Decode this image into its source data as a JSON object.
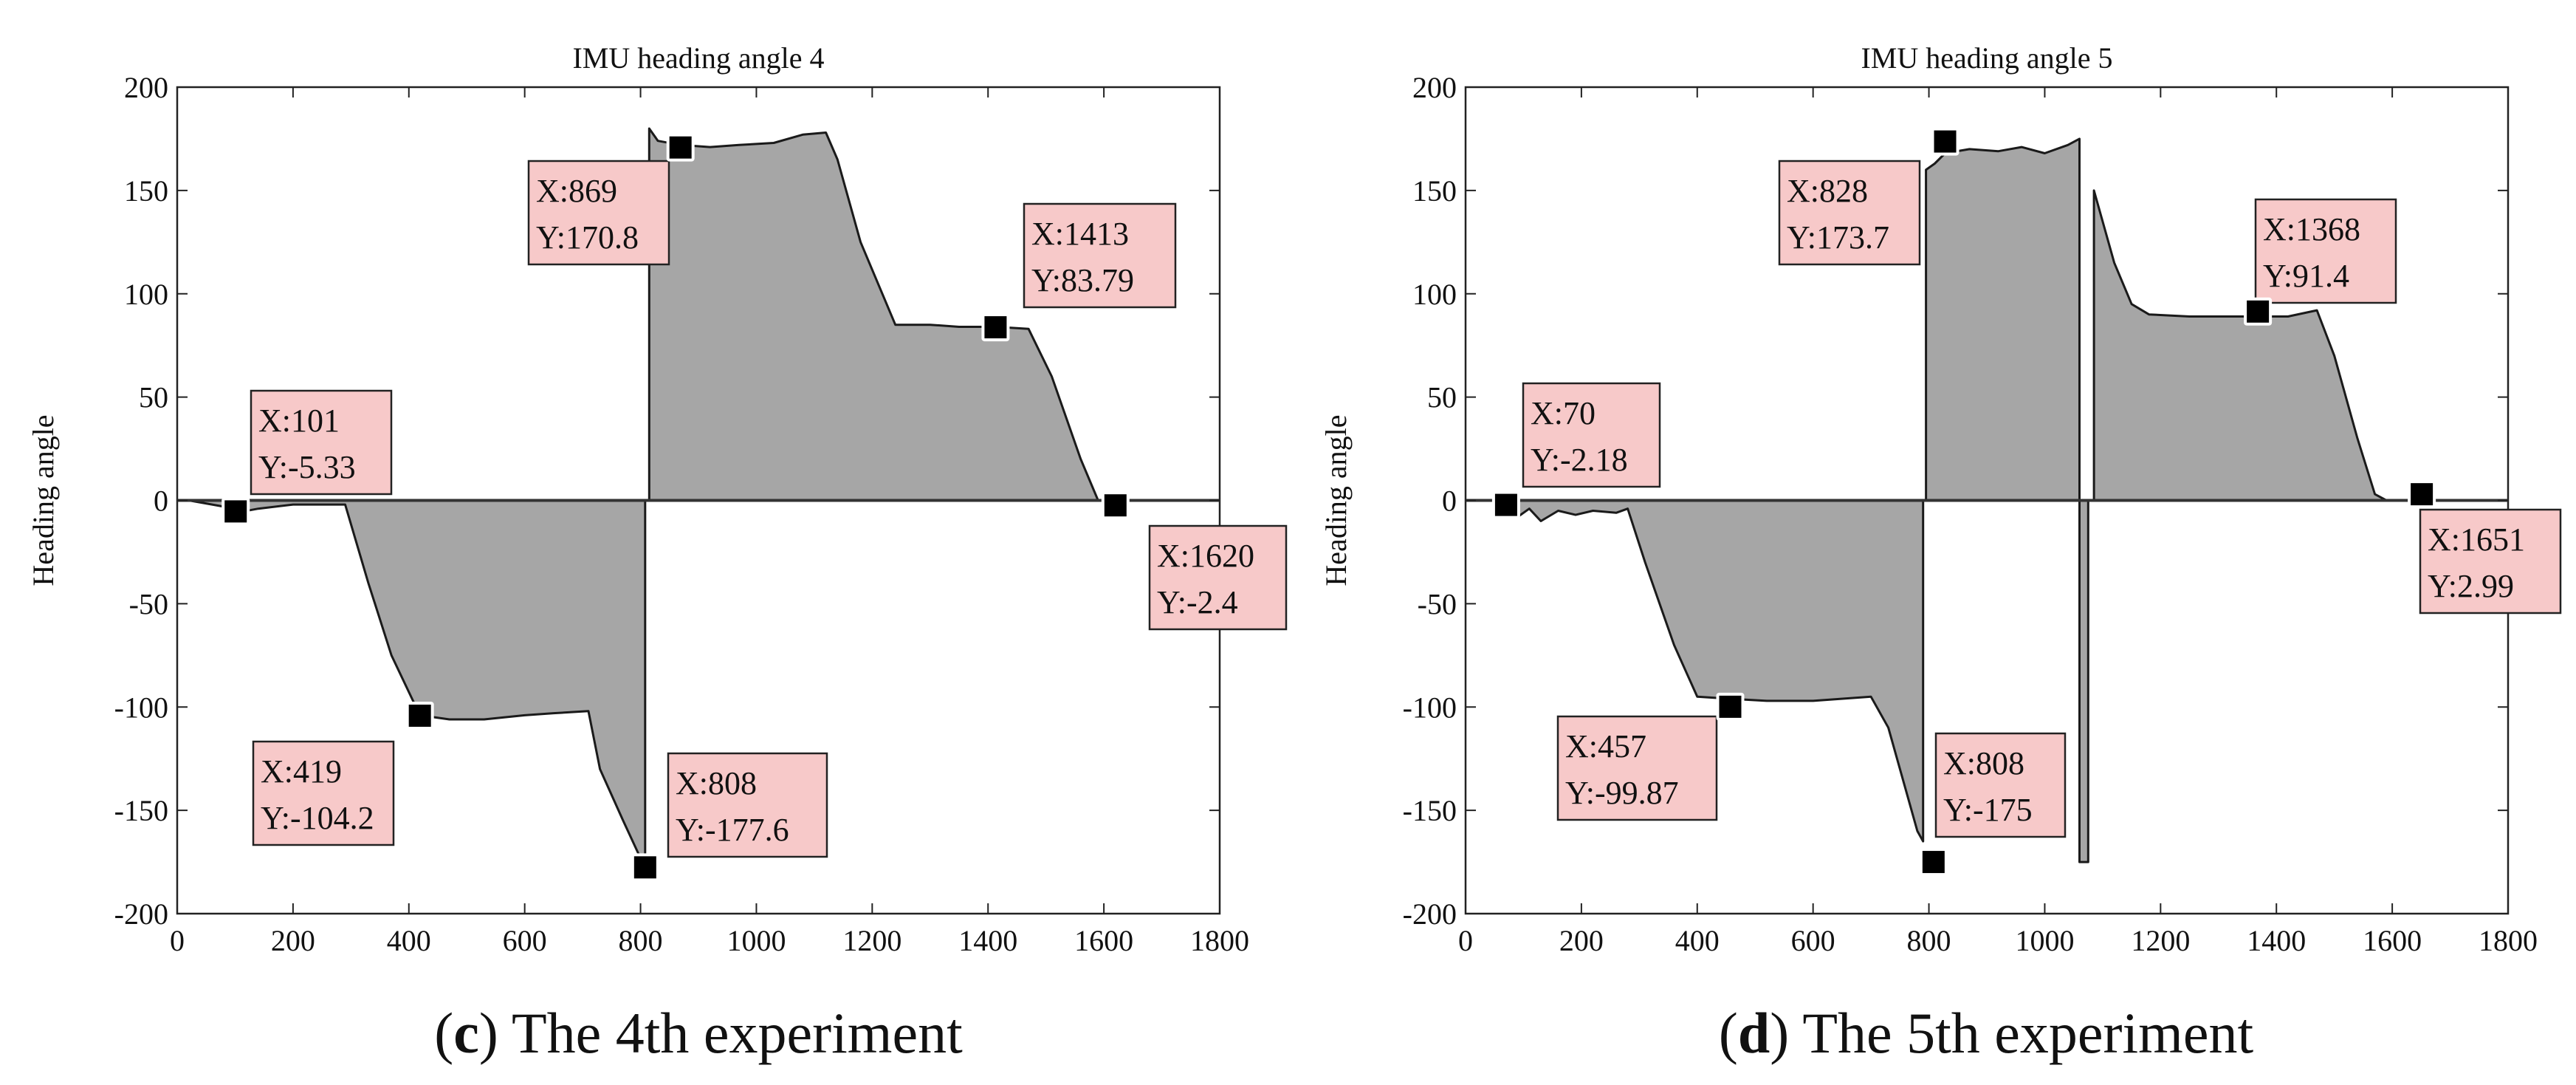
{
  "chart_data": [
    {
      "type": "area",
      "title": "IMU heading angle 4",
      "xlabel": "",
      "ylabel": "Heading angle",
      "xlim": [
        0,
        1800
      ],
      "ylim": [
        -200,
        200
      ],
      "xticks": [
        0,
        200,
        400,
        600,
        800,
        1000,
        1200,
        1400,
        1600,
        1800
      ],
      "yticks": [
        200,
        150,
        100,
        50,
        0,
        -50,
        -100,
        -150,
        -200
      ],
      "caption": {
        "letter": "c",
        "text": " The 4th experiment",
        "open": "(",
        "close": ")"
      },
      "series": [
        {
          "name": "heading",
          "segments": [
            [
              [
                20,
                0
              ],
              [
                80,
                -3
              ],
              [
                101,
                -6
              ],
              [
                140,
                -4
              ],
              [
                200,
                -2
              ],
              [
                290,
                -2
              ],
              [
                330,
                -40
              ],
              [
                370,
                -75
              ],
              [
                419,
                -104
              ],
              [
                470,
                -106
              ],
              [
                530,
                -106
              ],
              [
                600,
                -104
              ],
              [
                650,
                -103
              ],
              [
                710,
                -102
              ],
              [
                730,
                -130
              ],
              [
                770,
                -155
              ],
              [
                808,
                -178
              ],
              [
                808,
                0
              ]
            ],
            [
              [
                815,
                180
              ],
              [
                830,
                174
              ],
              [
                869,
                172
              ],
              [
                920,
                171
              ],
              [
                970,
                172
              ],
              [
                1030,
                173
              ],
              [
                1080,
                177
              ],
              [
                1120,
                178
              ],
              [
                1140,
                165
              ],
              [
                1180,
                125
              ],
              [
                1240,
                85
              ],
              [
                1300,
                85
              ],
              [
                1350,
                84
              ],
              [
                1413,
                84
              ],
              [
                1470,
                83
              ],
              [
                1510,
                60
              ],
              [
                1560,
                20
              ],
              [
                1590,
                0
              ]
            ]
          ]
        }
      ],
      "markers": [
        {
          "x": 101,
          "y": -5.33
        },
        {
          "x": 419,
          "y": -104.2
        },
        {
          "x": 808,
          "y": -177.6
        },
        {
          "x": 869,
          "y": 170.8
        },
        {
          "x": 1413,
          "y": 83.79
        },
        {
          "x": 1620,
          "y": -2.4
        }
      ],
      "annotations": [
        {
          "line1": "X:101",
          "line2": "Y:-5.33"
        },
        {
          "line1": "X:419",
          "line2": "Y:-104.2"
        },
        {
          "line1": "X:808",
          "line2": "Y:-177.6"
        },
        {
          "line1": "X:869",
          "line2": "Y:170.8"
        },
        {
          "line1": "X:1413",
          "line2": "Y:83.79"
        },
        {
          "line1": "X:1620",
          "line2": "Y:-2.4"
        }
      ]
    },
    {
      "type": "area",
      "title": "IMU heading angle 5",
      "xlabel": "",
      "ylabel": "Heading angle",
      "xlim": [
        0,
        1800
      ],
      "ylim": [
        -200,
        200
      ],
      "xticks": [
        0,
        200,
        400,
        600,
        800,
        1000,
        1200,
        1400,
        1600,
        1800
      ],
      "yticks": [
        200,
        150,
        100,
        50,
        0,
        -50,
        -100,
        -150,
        -200
      ],
      "caption": {
        "letter": "d",
        "text": " The 5th experiment",
        "open": "(",
        "close": ")"
      },
      "series": [
        {
          "name": "heading",
          "segments": [
            [
              [
                70,
                -2
              ],
              [
                90,
                -8
              ],
              [
                110,
                -4
              ],
              [
                130,
                -10
              ],
              [
                160,
                -5
              ],
              [
                190,
                -7
              ],
              [
                220,
                -5
              ],
              [
                260,
                -6
              ],
              [
                280,
                -4
              ],
              [
                310,
                -30
              ],
              [
                360,
                -70
              ],
              [
                400,
                -95
              ],
              [
                457,
                -96
              ],
              [
                520,
                -97
              ],
              [
                600,
                -97
              ],
              [
                700,
                -95
              ],
              [
                730,
                -110
              ],
              [
                760,
                -140
              ],
              [
                780,
                -160
              ],
              [
                790,
                -165
              ],
              [
                790,
                0
              ]
            ],
            [
              [
                795,
                160
              ],
              [
                810,
                163
              ],
              [
                828,
                168
              ],
              [
                870,
                170
              ],
              [
                920,
                169
              ],
              [
                960,
                171
              ],
              [
                1000,
                168
              ],
              [
                1040,
                172
              ],
              [
                1060,
                175
              ],
              [
                1060,
                -175
              ],
              [
                1075,
                -175
              ],
              [
                1075,
                0
              ]
            ],
            [
              [
                1085,
                150
              ],
              [
                1120,
                115
              ],
              [
                1150,
                95
              ],
              [
                1180,
                90
              ],
              [
                1250,
                89
              ],
              [
                1300,
                89
              ],
              [
                1368,
                89
              ],
              [
                1420,
                89
              ],
              [
                1470,
                92
              ],
              [
                1500,
                70
              ],
              [
                1540,
                30
              ],
              [
                1570,
                3
              ],
              [
                1590,
                0
              ]
            ]
          ]
        }
      ],
      "markers": [
        {
          "x": 70,
          "y": -2.18
        },
        {
          "x": 457,
          "y": -99.87
        },
        {
          "x": 808,
          "y": -175
        },
        {
          "x": 828,
          "y": 173.7
        },
        {
          "x": 1368,
          "y": 91.4
        },
        {
          "x": 1651,
          "y": 2.99
        }
      ],
      "annotations": [
        {
          "line1": "X:70",
          "line2": "Y:-2.18"
        },
        {
          "line1": "X:457",
          "line2": "Y:-99.87"
        },
        {
          "line1": "X:808",
          "line2": "Y:-175"
        },
        {
          "line1": "X:828",
          "line2": "Y:173.7"
        },
        {
          "line1": "X:1368",
          "line2": "Y:91.4"
        },
        {
          "line1": "X:1651",
          "line2": "Y:2.99"
        }
      ]
    }
  ]
}
